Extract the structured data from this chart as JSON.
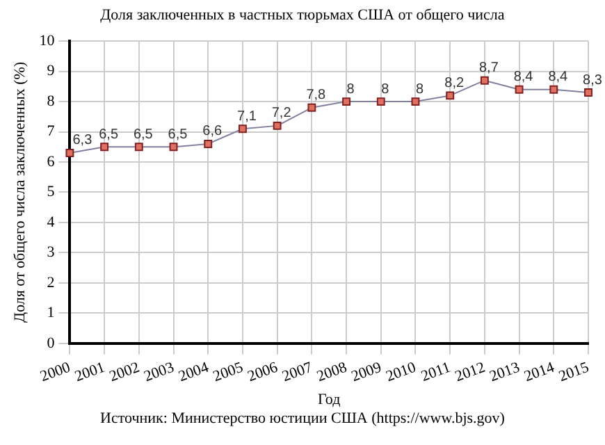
{
  "chart_data": {
    "type": "line",
    "title": "Доля заключенных в частных тюрьмах США от общего числа",
    "xlabel": "Год",
    "ylabel": "Доля от общего числа заключенных (%)",
    "annotations": [
      "Источник: Министерство юстиции США (https://www.bjs.gov)"
    ],
    "categories": [
      "2000",
      "2001",
      "2002",
      "2003",
      "2004",
      "2005",
      "2006",
      "2007",
      "2008",
      "2009",
      "2010",
      "2011",
      "2012",
      "2013",
      "2014",
      "2015"
    ],
    "series": [
      {
        "color": "#8080a0",
        "values": [
          6.3,
          6.5,
          6.5,
          6.5,
          6.6,
          7.1,
          7.2,
          7.8,
          8,
          8,
          8,
          8.2,
          8.7,
          8.4,
          8.4,
          8.3
        ],
        "value_labels": [
          "6,3",
          "6,5",
          "6,5",
          "6,5",
          "6,6",
          "7,1",
          "7,2",
          "7,8",
          "8",
          "8",
          "8",
          "8,2",
          "8,7",
          "8,4",
          "8,4",
          "8,3"
        ]
      }
    ],
    "ylim": [
      0,
      10
    ],
    "yticks": [
      0,
      1,
      2,
      3,
      4,
      5,
      6,
      7,
      8,
      9,
      10
    ],
    "grid": true,
    "legend": false,
    "marker": "square",
    "line_style": "solid"
  }
}
